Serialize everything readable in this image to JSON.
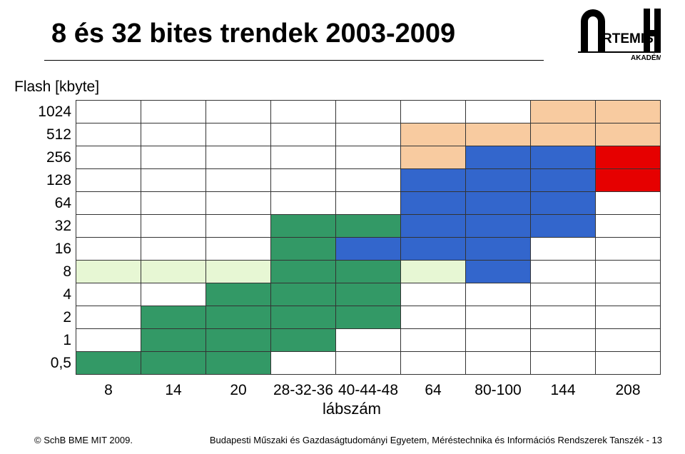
{
  "title": "8 és 32 bites trendek 2003-2009",
  "ylabel": "Flash [kbyte]",
  "xlabel": "lábszám",
  "row_headers": [
    "1024",
    "512",
    "256",
    "128",
    "64",
    "32",
    "16",
    "8",
    "4",
    "2",
    "1",
    "0,5"
  ],
  "col_headers": [
    "8",
    "14",
    "20",
    "28-32-36",
    "40-44-48",
    "64",
    "80-100",
    "144",
    "208"
  ],
  "colors": {
    "pale": "#e7f7d4",
    "green": "#339966",
    "blue": "#3366cc",
    "peach": "#f8cba0",
    "red": "#e60000",
    "empty": "#ffffff"
  },
  "cells": [
    [
      null,
      null,
      null,
      null,
      null,
      null,
      null,
      "peach",
      "peach"
    ],
    [
      null,
      null,
      null,
      null,
      null,
      "peach",
      "peach",
      "peach",
      "peach"
    ],
    [
      null,
      null,
      null,
      null,
      null,
      "peach",
      "blue",
      "blue",
      "red"
    ],
    [
      null,
      null,
      null,
      null,
      null,
      "blue",
      "blue",
      "blue",
      "red"
    ],
    [
      null,
      null,
      null,
      null,
      null,
      "blue",
      "blue",
      "blue",
      null
    ],
    [
      null,
      null,
      null,
      "green",
      "green",
      "blue",
      "blue",
      "blue",
      null
    ],
    [
      null,
      null,
      null,
      "green",
      "blue",
      "blue",
      "blue",
      null,
      null
    ],
    [
      "pale",
      "pale",
      "pale",
      "green",
      "green",
      "pale",
      "blue",
      null,
      null
    ],
    [
      null,
      null,
      "green",
      "green",
      "green",
      null,
      null,
      null,
      null
    ],
    [
      null,
      "green",
      "green",
      "green",
      "green",
      null,
      null,
      null,
      null
    ],
    [
      null,
      "green",
      "green",
      "green",
      null,
      null,
      null,
      null,
      null
    ],
    [
      "green",
      "green",
      "green",
      null,
      null,
      null,
      null,
      null,
      null
    ]
  ],
  "footer": {
    "copyright": "© SchB BME MIT  2009.",
    "affiliation": "Budapesti Műszaki és Gazdaságtudományi Egyetem, Méréstechnika és Információs Rendszerek Tanszék - 13"
  },
  "logo": {
    "academy_label": "AKADÉMIA"
  }
}
